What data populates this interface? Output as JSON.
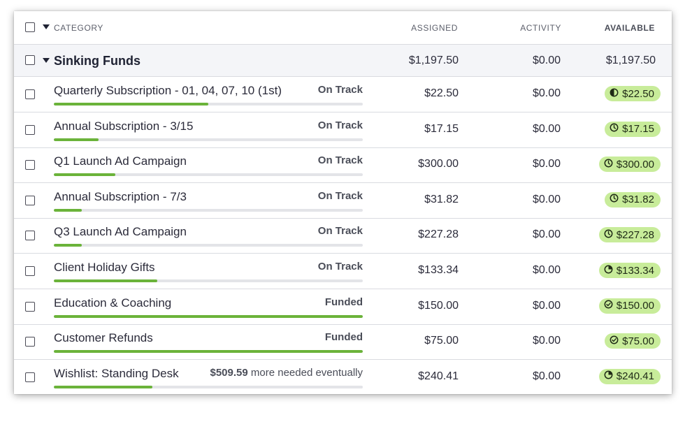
{
  "header": {
    "category_label": "CATEGORY",
    "assigned_label": "ASSIGNED",
    "activity_label": "ACTIVITY",
    "available_label": "AVAILABLE"
  },
  "group": {
    "name": "Sinking Funds",
    "assigned": "$1,197.50",
    "activity": "$0.00",
    "available": "$1,197.50"
  },
  "categories": [
    {
      "name": "Quarterly Subscription - 01, 04, 07, 10 (1st)",
      "status": "On Track",
      "progress": 0.5,
      "assigned": "$22.50",
      "activity": "$0.00",
      "available": "$22.50",
      "icon": "half-circle-icon"
    },
    {
      "name": "Annual Subscription - 3/15",
      "status": "On Track",
      "progress": 0.145,
      "assigned": "$17.15",
      "activity": "$0.00",
      "available": "$17.15",
      "icon": "clock-icon"
    },
    {
      "name": "Q1 Launch Ad Campaign",
      "status": "On Track",
      "progress": 0.2,
      "assigned": "$300.00",
      "activity": "$0.00",
      "available": "$300.00",
      "icon": "clock-icon"
    },
    {
      "name": "Annual Subscription - 7/3",
      "status": "On Track",
      "progress": 0.09,
      "assigned": "$31.82",
      "activity": "$0.00",
      "available": "$31.82",
      "icon": "clock-icon"
    },
    {
      "name": "Q3 Launch Ad Campaign",
      "status": "On Track",
      "progress": 0.09,
      "assigned": "$227.28",
      "activity": "$0.00",
      "available": "$227.28",
      "icon": "clock-icon"
    },
    {
      "name": "Client Holiday Gifts",
      "status": "On Track",
      "progress": 0.335,
      "assigned": "$133.34",
      "activity": "$0.00",
      "available": "$133.34",
      "icon": "quarter-circle-icon"
    },
    {
      "name": "Education & Coaching",
      "status": "Funded",
      "progress": 1.0,
      "assigned": "$150.00",
      "activity": "$0.00",
      "available": "$150.00",
      "icon": "check-circle-icon"
    },
    {
      "name": "Customer Refunds",
      "status": "Funded",
      "progress": 1.0,
      "assigned": "$75.00",
      "activity": "$0.00",
      "available": "$75.00",
      "icon": "check-circle-icon"
    },
    {
      "name": "Wishlist: Standing Desk",
      "status_amount": "$509.59",
      "status_rest": "more needed eventually",
      "progress": 0.32,
      "assigned": "$240.41",
      "activity": "$0.00",
      "available": "$240.41",
      "icon": "quarter-circle-icon"
    }
  ],
  "colors": {
    "progress_fill": "#6bb33a",
    "progress_track": "#e3e4e8",
    "available_pill": "#c8ec9a"
  }
}
